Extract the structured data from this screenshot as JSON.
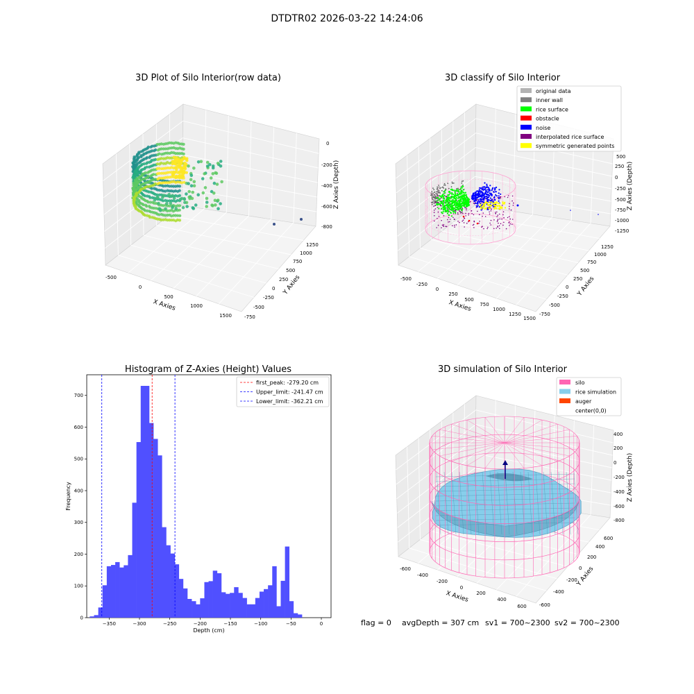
{
  "figure_title": "DTDTR02 2026-03-22 14:24:06",
  "status_line": {
    "flag": "flag = 0",
    "avg_depth": "avgDepth = 307 cm",
    "sv1": "sv1 = 700~2300",
    "sv2": "sv2 = 700~2300"
  },
  "colors": {
    "hist_bar": "#5050ff",
    "peak_line": "#ff0000",
    "limit_line": "#0000ff",
    "silo": "#ff66b3",
    "rice_sim": "#87ceeb",
    "auger": "#ff4500",
    "rice_surface": "#00ff00",
    "noise": "#0000ff",
    "inner_wall": "#808080",
    "interp": "#800080",
    "symmetric": "#ffff00"
  },
  "chart_data": [
    {
      "type": "scatter",
      "projection": "3d",
      "title": "3D Plot of Silo Interior(row data)",
      "xlabel": "X Axies",
      "ylabel": "Y Axies",
      "zlabel": "Z Axies (Depth)",
      "x_ticks": [
        "-500",
        "0",
        "500",
        "1000",
        "1500"
      ],
      "y_ticks": [
        "-750",
        "-500",
        "-250",
        "0",
        "250",
        "500",
        "750",
        "1000",
        "1250"
      ],
      "z_ticks": [
        "0",
        "-200",
        "-400",
        "-600",
        "-800"
      ],
      "xlim": [
        -600,
        1600
      ],
      "ylim": [
        -750,
        1250
      ],
      "zlim": [
        -900,
        0
      ],
      "colormap": "viridis (by depth)"
    },
    {
      "type": "scatter",
      "projection": "3d",
      "title": "3D classify of Silo Interior",
      "xlabel": "X Axies",
      "ylabel": "Y Axies",
      "zlabel": "Z Axies (Depth)",
      "x_ticks": [
        "-500",
        "-250",
        "0",
        "250",
        "500",
        "750",
        "1000",
        "1250",
        "1500"
      ],
      "y_ticks": [
        "-750",
        "-500",
        "-250",
        "0",
        "250",
        "500",
        "750",
        "1000",
        "1250"
      ],
      "z_ticks": [
        "500",
        "250",
        "0",
        "-250",
        "-500",
        "-750",
        "-1000",
        "-1250"
      ],
      "legend_position": "top-right",
      "legend": [
        {
          "label": "original data",
          "color": "#b3b3b3"
        },
        {
          "label": "inner wall",
          "color": "#808080"
        },
        {
          "label": "rice surface",
          "color": "#00ff00"
        },
        {
          "label": "obstacle",
          "color": "#ff0000"
        },
        {
          "label": "noise",
          "color": "#0000ff"
        },
        {
          "label": "interpolated rice surface",
          "color": "#800080"
        },
        {
          "label": "symmetric generated points",
          "color": "#ffff00"
        }
      ]
    },
    {
      "type": "bar",
      "title": "Histogram of Z-Axies (Height) Values",
      "xlabel": "Depth (cm)",
      "ylabel": "Frequency",
      "xlim": [
        -387,
        16
      ],
      "ylim": [
        0,
        765
      ],
      "x_ticks": [
        -350,
        -300,
        -250,
        -200,
        -150,
        -100,
        -50,
        0
      ],
      "y_ticks": [
        0,
        100,
        200,
        300,
        400,
        500,
        600,
        700
      ],
      "bin_start": -382,
      "bin_width": 7,
      "values": [
        4,
        8,
        32,
        102,
        162,
        166,
        175,
        158,
        165,
        197,
        362,
        553,
        730,
        730,
        613,
        563,
        511,
        285,
        228,
        202,
        168,
        122,
        92,
        59,
        52,
        42,
        61,
        112,
        115,
        148,
        140,
        80,
        75,
        78,
        96,
        78,
        62,
        42,
        42,
        62,
        82,
        90,
        102,
        162,
        36,
        116,
        224,
        52,
        14,
        10
      ],
      "vlines": [
        {
          "label": "first_peak: -279.20 cm",
          "x": -279.2,
          "color": "#ff0000"
        },
        {
          "label": "Upper_limit: -241.47 cm",
          "x": -241.47,
          "color": "#0000ff"
        },
        {
          "label": "Lower_limit: -362.21 cm",
          "x": -362.21,
          "color": "#0000ff"
        }
      ],
      "legend_position": "top-right"
    },
    {
      "type": "surface",
      "projection": "3d",
      "title": "3D simulation of Silo Interior",
      "xlabel": "X Axies",
      "ylabel": "Y Axies",
      "zlabel": "Z Axies (Depth)",
      "x_ticks": [
        "-600",
        "-400",
        "-200",
        "0",
        "200",
        "400",
        "600"
      ],
      "y_ticks": [
        "-600",
        "-400",
        "-200",
        "0",
        "200",
        "400",
        "600"
      ],
      "z_ticks": [
        "400",
        "200",
        "0",
        "-200",
        "-400",
        "-600",
        "-800"
      ],
      "legend_position": "top-right",
      "legend": [
        {
          "label": "silo",
          "color": "#ff66b3"
        },
        {
          "label": "rice simulation",
          "color": "#87ceeb"
        },
        {
          "label": "auger",
          "color": "#ff4500"
        },
        {
          "label": "center(0,0)",
          "color": ""
        }
      ]
    }
  ]
}
